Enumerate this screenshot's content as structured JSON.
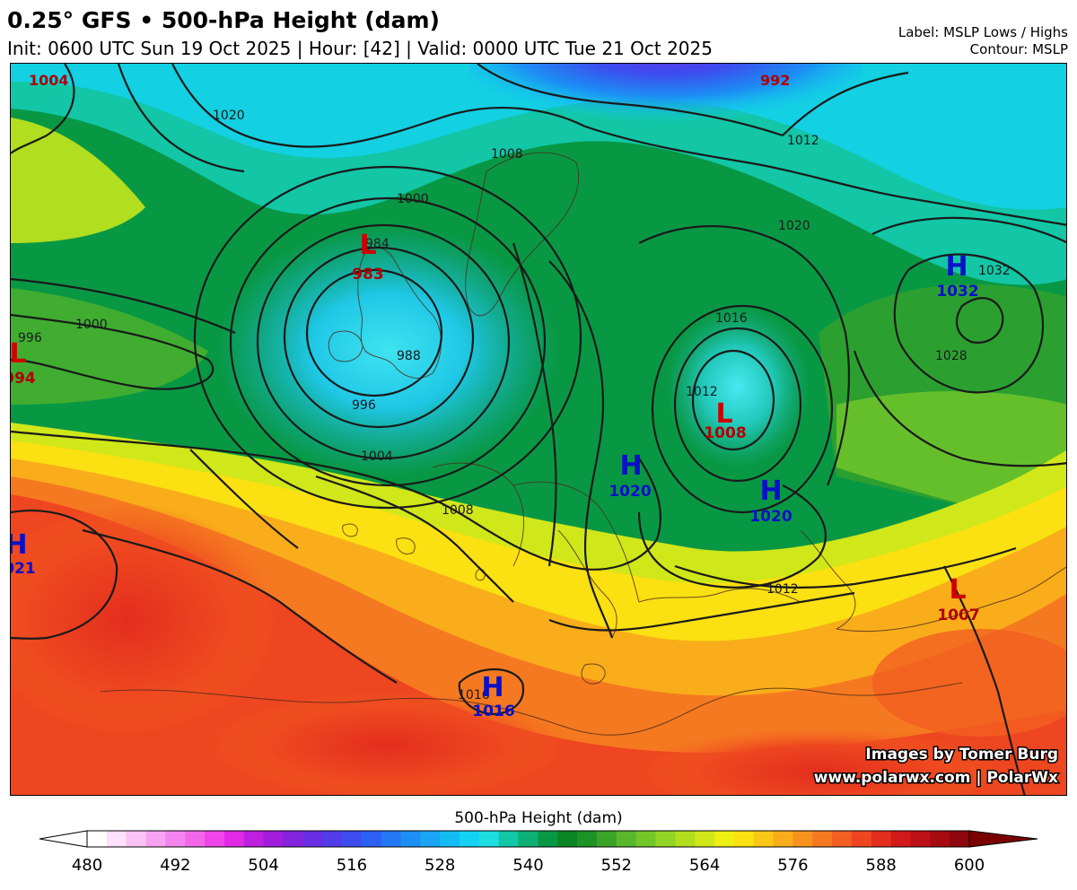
{
  "header": {
    "title": "0.25° GFS • 500-hPa Height (dam)",
    "subtitle": "Init: 0600 UTC Sun 19 Oct 2025 | Hour: [42] | Valid: 0000 UTC Tue 21 Oct 2025",
    "label_info": "Label: MSLP Lows / Highs",
    "contour_info": "Contour: MSLP"
  },
  "pressure_centers": [
    {
      "type": "L",
      "value": "983"
    },
    {
      "type": "L",
      "value": "994"
    },
    {
      "type": "L",
      "value": "1008"
    },
    {
      "type": "L",
      "value": "1007"
    },
    {
      "type": "H",
      "value": "1032"
    },
    {
      "type": "H",
      "value": "1020"
    },
    {
      "type": "H",
      "value": "1020"
    },
    {
      "type": "H",
      "value": "021"
    },
    {
      "type": "H",
      "value": "1016"
    }
  ],
  "edge_labels": [
    "1004",
    "992"
  ],
  "contour_labels": [
    "1020",
    "1008",
    "1012",
    "1020",
    "1000",
    "1000",
    "996",
    "984",
    "988",
    "996",
    "1004",
    "1008",
    "1016",
    "1012",
    "1028",
    "1032",
    "1012",
    "1016"
  ],
  "credits": {
    "line1": "Images by Tomer Burg",
    "line2": "www.polarwx.com | PolarWx"
  },
  "colorbar": {
    "label": "500-hPa Height (dam)",
    "ticks": [
      "480",
      "492",
      "504",
      "516",
      "528",
      "540",
      "552",
      "564",
      "576",
      "588",
      "600"
    ],
    "colors": [
      "#ffffff",
      "#fde0fb",
      "#fbc2f6",
      "#f8a3f2",
      "#f585ee",
      "#f266ea",
      "#f045e9",
      "#e02ae6",
      "#c01ee0",
      "#a31cdc",
      "#8424dd",
      "#6a2ee2",
      "#523be8",
      "#3d4cee",
      "#2c60f3",
      "#2277f4",
      "#1c8ef4",
      "#1aa6f4",
      "#14bcf4",
      "#14d2f1",
      "#1cdde0",
      "#12c6a6",
      "#0cb074",
      "#089844",
      "#0a8524",
      "#1e9224",
      "#3aa428",
      "#58b72a",
      "#74c72a",
      "#92d425",
      "#b1de1f",
      "#d0e719",
      "#edf012",
      "#fbe012",
      "#fbc716",
      "#f9ad1a",
      "#f7931d",
      "#f57920",
      "#f35f21",
      "#ee4620",
      "#e32e1d",
      "#d2191a",
      "#bd0f16",
      "#a60b12",
      "#8e070e"
    ],
    "over_color": "#7a0000",
    "under_color": "#ffffff"
  }
}
